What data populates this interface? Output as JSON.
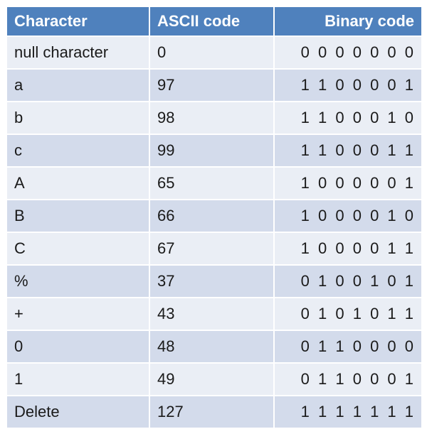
{
  "table": {
    "headers": [
      "Character",
      "ASCII code",
      "Binary code"
    ],
    "rows": [
      [
        "null character",
        "0",
        "0 0 0 0 0 0 0"
      ],
      [
        "a",
        "97",
        "1 1 0 0 0 0 1"
      ],
      [
        "b",
        "98",
        "1 1 0 0 0 1 0"
      ],
      [
        "c",
        "99",
        "1 1 0 0 0 1 1"
      ],
      [
        "A",
        "65",
        "1 0 0 0 0 0 1"
      ],
      [
        "B",
        "66",
        "1 0 0 0 0 1 0"
      ],
      [
        "C",
        "67",
        "1 0 0 0 0 1 1"
      ],
      [
        "%",
        "37",
        "0 1 0 0 1 0 1"
      ],
      [
        "+",
        "43",
        "0 1 0 1 0 1 1"
      ],
      [
        "0",
        "48",
        "0 1 1 0 0 0 0"
      ],
      [
        "1",
        "49",
        "0 1 1 0 0 0 1"
      ],
      [
        "Delete",
        "127",
        "1 1 1 1 1 1 1"
      ]
    ]
  },
  "colors": {
    "header": "#4f81bd",
    "row_light": "#eaeef5",
    "row_dark": "#d3dbeb"
  }
}
